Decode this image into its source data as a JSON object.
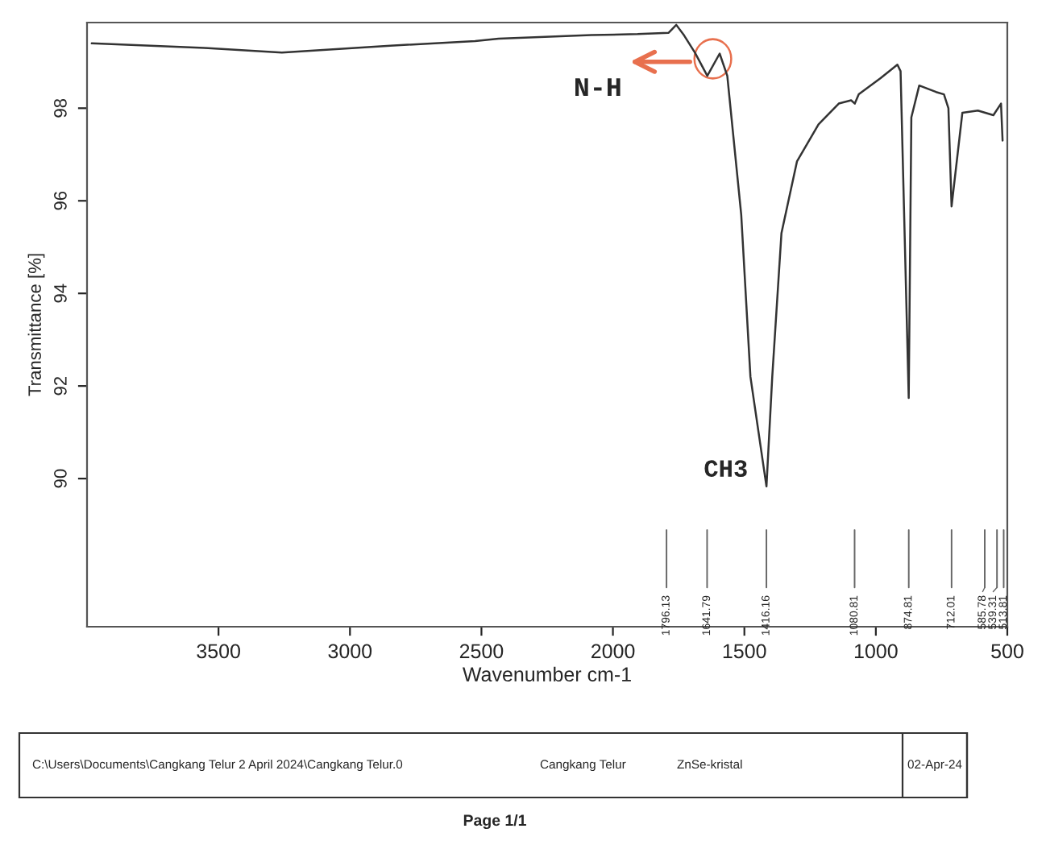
{
  "chart_data": {
    "type": "line",
    "xlabel": "Wavenumber cm-1",
    "ylabel": "Transmittance [%]",
    "xlim": [
      4000,
      500
    ],
    "ylim": [
      86.8,
      99.85
    ],
    "xticks": [
      3500,
      3000,
      2500,
      2000,
      1500,
      1000,
      500
    ],
    "yticks": [
      90,
      92,
      94,
      96,
      98
    ],
    "grid": false,
    "legend": false,
    "marker": "none",
    "line_style": "solid",
    "series": [
      {
        "color": "#333333",
        "x": [
          3982,
          3553,
          3259,
          2847,
          2524,
          2435,
          2082,
          1906,
          1788,
          1759,
          1729,
          1688,
          1641,
          1594,
          1565,
          1512,
          1477,
          1416,
          1394,
          1359,
          1300,
          1218,
          1141,
          1094,
          1080,
          1065,
          982,
          918,
          906,
          875,
          865,
          835,
          771,
          741,
          724,
          712,
          671,
          612,
          553,
          524,
          518
        ],
        "values": [
          99.4,
          99.3,
          99.2,
          99.35,
          99.45,
          99.5,
          99.58,
          99.6,
          99.63,
          99.8,
          99.57,
          99.2,
          98.7,
          99.18,
          98.7,
          95.7,
          92.2,
          89.83,
          92.2,
          95.3,
          96.85,
          97.65,
          98.1,
          98.17,
          98.1,
          98.3,
          98.65,
          98.94,
          98.8,
          91.74,
          97.8,
          98.49,
          98.35,
          98.3,
          98.0,
          95.88,
          97.9,
          97.95,
          97.85,
          98.1,
          97.3
        ]
      }
    ],
    "ref_lines": [
      {
        "axis": "x",
        "value": 1796.13,
        "label": "1796.13"
      },
      {
        "axis": "x",
        "value": 1641.79,
        "label": "1641.79"
      },
      {
        "axis": "x",
        "value": 1416.16,
        "label": "1416.16"
      },
      {
        "axis": "x",
        "value": 1080.81,
        "label": "1080.81"
      },
      {
        "axis": "x",
        "value": 874.81,
        "label": "874.81"
      },
      {
        "axis": "x",
        "value": 712.01,
        "label": "712.01"
      },
      {
        "axis": "x",
        "value": 585.78,
        "label": "585.78"
      },
      {
        "axis": "x",
        "value": 539.31,
        "label": "539.31"
      },
      {
        "axis": "x",
        "value": 513.81,
        "label": "513.81"
      }
    ],
    "annotations": [
      "N-H",
      {
        "text": "CH3",
        "x": 1416,
        "y": 89.83
      },
      "C:\\Users\\Documents\\Cangkang Telur 2 April 2024\\Cangkang Telur.0",
      "Cangkang Telur",
      "ZnSe-kristal",
      "02-Apr-24",
      "Page 1/1"
    ]
  }
}
